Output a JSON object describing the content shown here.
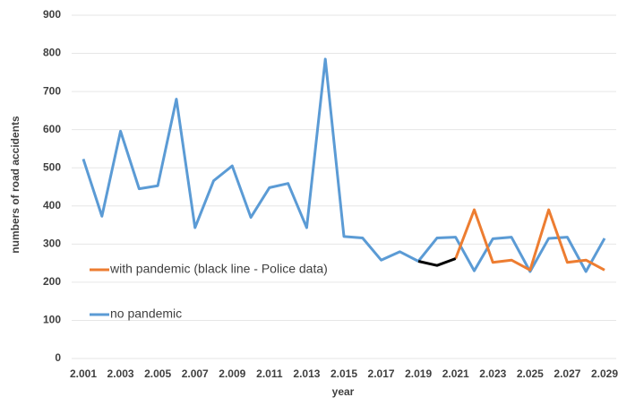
{
  "chart_data": {
    "type": "line",
    "x_label": "year",
    "y_label": "numbers of road accidents",
    "categories": [
      "2.001",
      null,
      "2.003",
      null,
      "2.005",
      null,
      "2.007",
      null,
      "2.009",
      null,
      "2.011",
      null,
      "2.013",
      null,
      "2.015",
      null,
      "2.017",
      null,
      "2.019",
      null,
      "2.021",
      null,
      "2.023",
      null,
      "2.025",
      null,
      "2.027",
      null,
      "2.029"
    ],
    "series": [
      {
        "name": "no pandemic",
        "color": "#5b9bd5",
        "values": [
          523,
          373,
          596,
          445,
          453,
          680,
          343,
          466,
          505,
          370,
          448,
          459,
          343,
          785,
          320,
          316,
          258,
          280,
          255,
          316,
          318,
          230,
          314,
          318,
          228,
          315,
          318,
          228,
          315
        ]
      },
      {
        "name": "with pandemic (black line - Police data)",
        "color": "#ed7d31",
        "values": [
          null,
          null,
          null,
          null,
          null,
          null,
          null,
          null,
          null,
          null,
          null,
          null,
          null,
          null,
          null,
          null,
          null,
          null,
          null,
          null,
          262,
          390,
          252,
          258,
          232,
          390,
          252,
          258,
          232
        ]
      },
      {
        "color": "#000000",
        "values": [
          null,
          null,
          null,
          null,
          null,
          null,
          null,
          null,
          null,
          null,
          null,
          null,
          null,
          null,
          null,
          null,
          null,
          null,
          255,
          244,
          262,
          null,
          null,
          null,
          null,
          null,
          null,
          null,
          null
        ]
      }
    ],
    "ylim": [
      0,
      900
    ],
    "yticks": [
      0,
      100,
      200,
      300,
      400,
      500,
      600,
      700,
      800,
      900
    ],
    "grid": true,
    "legend": "lower left"
  }
}
